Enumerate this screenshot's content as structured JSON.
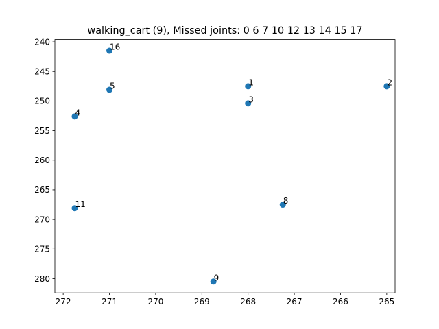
{
  "chart_data": {
    "type": "scatter",
    "title": "walking_cart (9), Missed joints: 0 6 7 10 12 13 14 15 17",
    "xlabel": "",
    "ylabel": "",
    "x_inverted": true,
    "y_inverted": true,
    "xlim": [
      272.18,
      264.82
    ],
    "ylim": [
      282.4,
      239.6
    ],
    "xticks": [
      {
        "value": 272,
        "label": "272"
      },
      {
        "value": 271,
        "label": "271"
      },
      {
        "value": 270,
        "label": "270"
      },
      {
        "value": 269,
        "label": "269"
      },
      {
        "value": 268,
        "label": "268"
      },
      {
        "value": 267,
        "label": "267"
      },
      {
        "value": 266,
        "label": "266"
      },
      {
        "value": 265,
        "label": "265"
      }
    ],
    "yticks": [
      {
        "value": 240,
        "label": "240"
      },
      {
        "value": 245,
        "label": "245"
      },
      {
        "value": 250,
        "label": "250"
      },
      {
        "value": 255,
        "label": "255"
      },
      {
        "value": 260,
        "label": "260"
      },
      {
        "value": 265,
        "label": "265"
      },
      {
        "value": 270,
        "label": "270"
      },
      {
        "value": 275,
        "label": "275"
      },
      {
        "value": 280,
        "label": "280"
      }
    ],
    "marker_color": "#1f77b4",
    "points": [
      {
        "label": "16",
        "x": 271.0,
        "y": 241.5
      },
      {
        "label": "1",
        "x": 268.0,
        "y": 247.5
      },
      {
        "label": "2",
        "x": 265.0,
        "y": 247.5
      },
      {
        "label": "5",
        "x": 271.0,
        "y": 248.1
      },
      {
        "label": "3",
        "x": 268.0,
        "y": 250.4
      },
      {
        "label": "4",
        "x": 271.75,
        "y": 252.6
      },
      {
        "label": "11",
        "x": 271.75,
        "y": 268.1
      },
      {
        "label": "8",
        "x": 267.25,
        "y": 267.5
      },
      {
        "label": "9",
        "x": 268.75,
        "y": 280.5
      }
    ],
    "grid": false,
    "legend": "none"
  }
}
